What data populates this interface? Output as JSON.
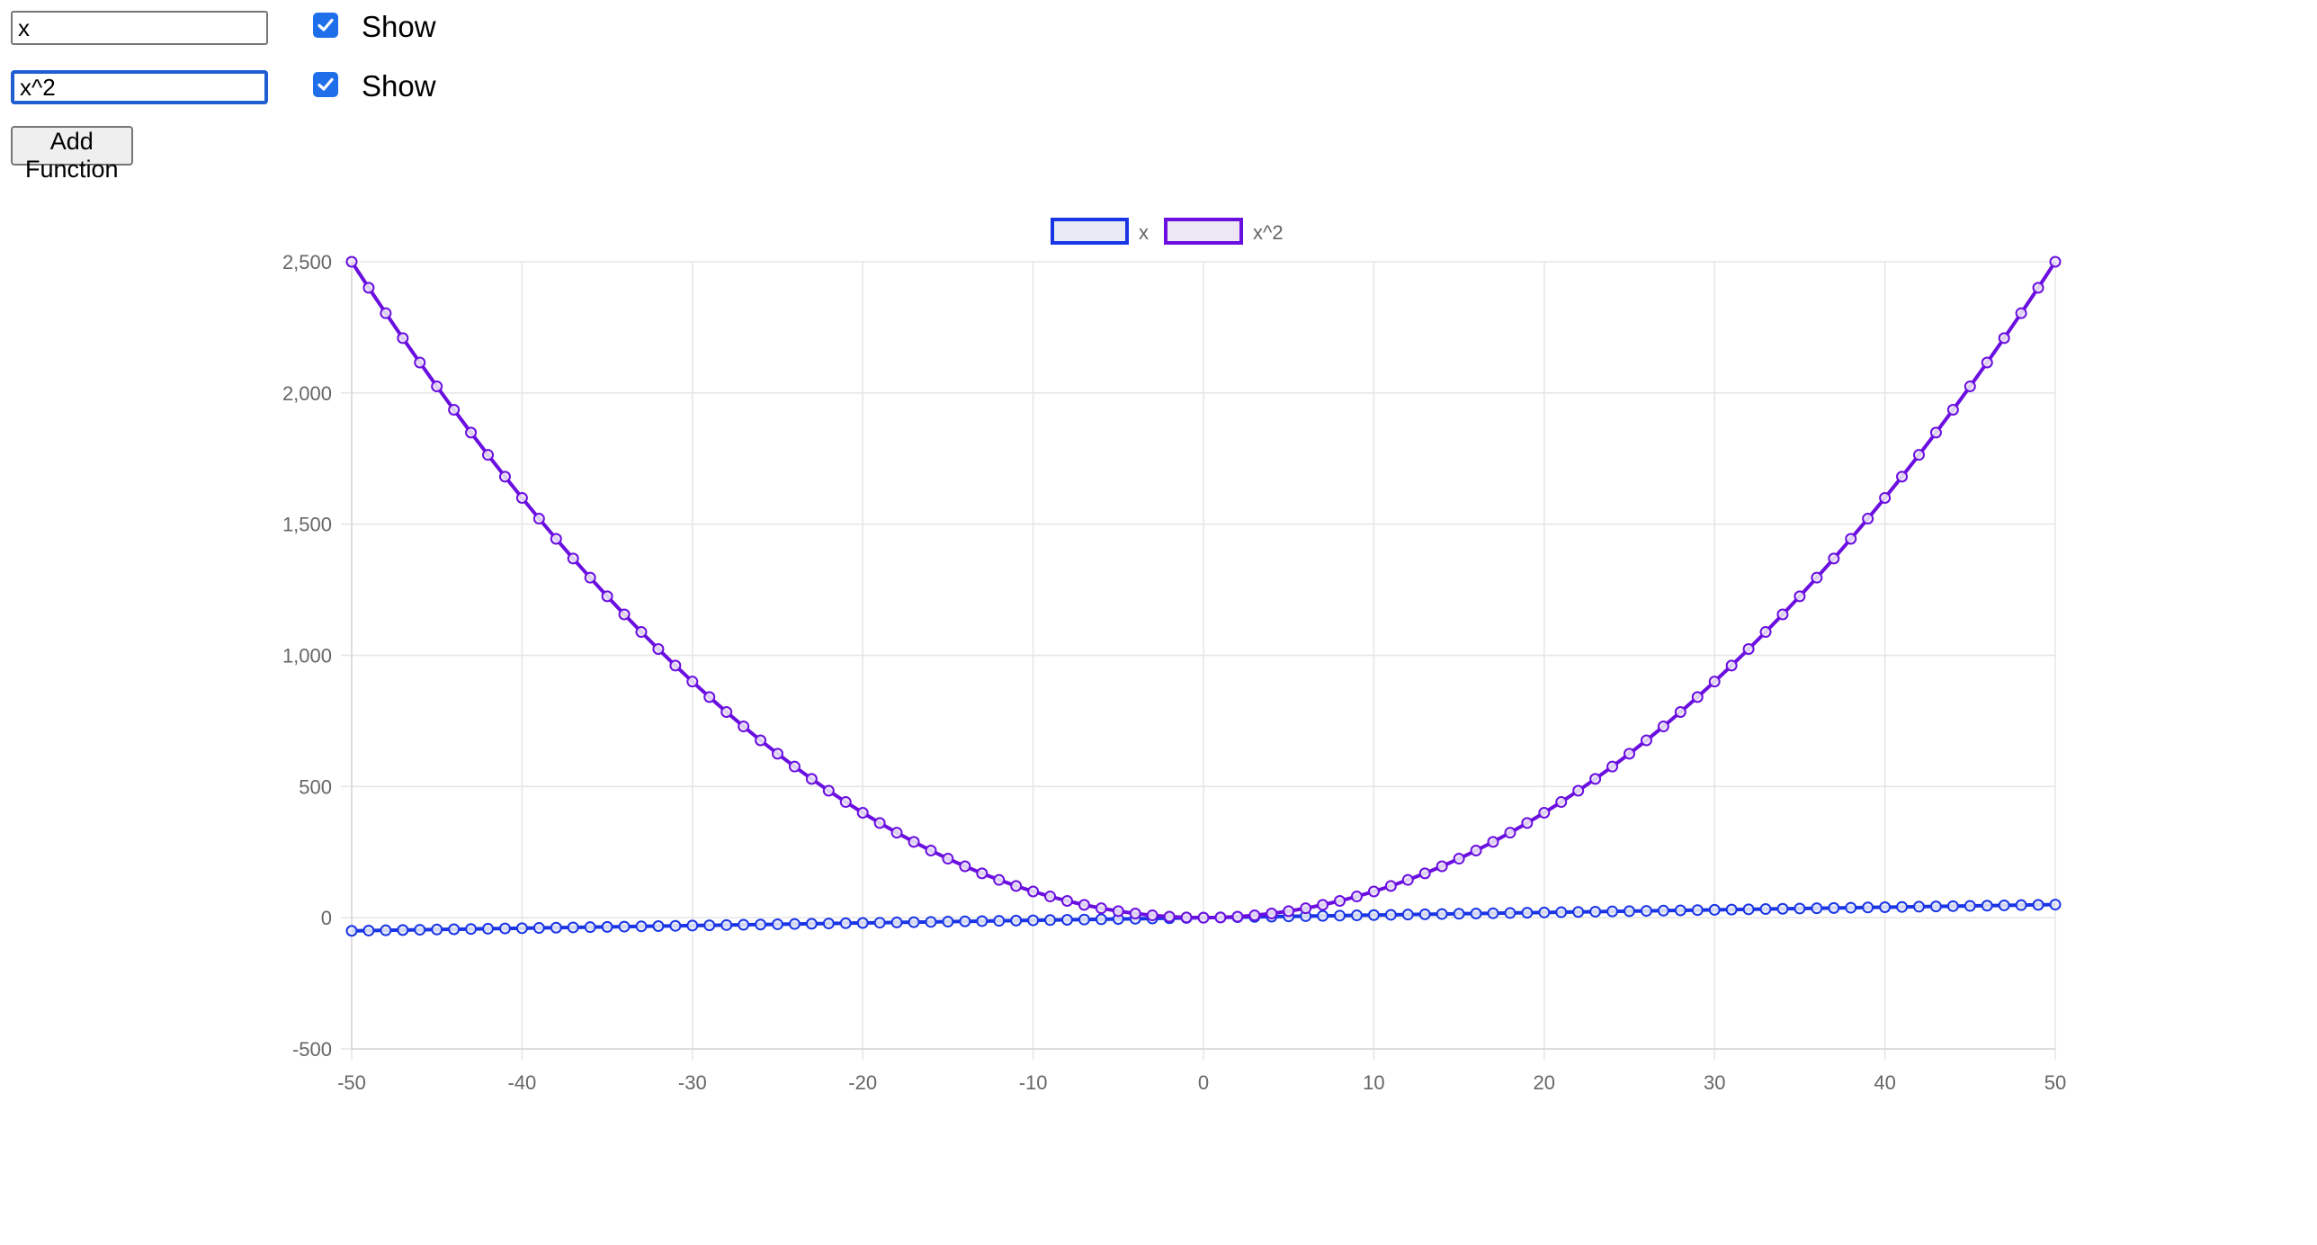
{
  "functions": [
    {
      "expression": "x",
      "show_label": "Show",
      "checked": true
    },
    {
      "expression": "x^2",
      "show_label": "Show",
      "checked": true
    }
  ],
  "add_button_label": "Add Function",
  "colors": {
    "series_x": "#1a35e6",
    "series_x2": "#6a0fe0",
    "grid": "#e5e5e5",
    "tick": "#666666",
    "checkbox": "#1f6feb",
    "focus_border": "#1f5fd1"
  },
  "chart_data": {
    "type": "line",
    "x": [
      -50,
      -49,
      -48,
      -47,
      -46,
      -45,
      -44,
      -43,
      -42,
      -41,
      -40,
      -39,
      -38,
      -37,
      -36,
      -35,
      -34,
      -33,
      -32,
      -31,
      -30,
      -29,
      -28,
      -27,
      -26,
      -25,
      -24,
      -23,
      -22,
      -21,
      -20,
      -19,
      -18,
      -17,
      -16,
      -15,
      -14,
      -13,
      -12,
      -11,
      -10,
      -9,
      -8,
      -7,
      -6,
      -5,
      -4,
      -3,
      -2,
      -1,
      0,
      1,
      2,
      3,
      4,
      5,
      6,
      7,
      8,
      9,
      10,
      11,
      12,
      13,
      14,
      15,
      16,
      17,
      18,
      19,
      20,
      21,
      22,
      23,
      24,
      25,
      26,
      27,
      28,
      29,
      30,
      31,
      32,
      33,
      34,
      35,
      36,
      37,
      38,
      39,
      40,
      41,
      42,
      43,
      44,
      45,
      46,
      47,
      48,
      49,
      50
    ],
    "series": [
      {
        "name": "x",
        "values": [
          -50,
          -49,
          -48,
          -47,
          -46,
          -45,
          -44,
          -43,
          -42,
          -41,
          -40,
          -39,
          -38,
          -37,
          -36,
          -35,
          -34,
          -33,
          -32,
          -31,
          -30,
          -29,
          -28,
          -27,
          -26,
          -25,
          -24,
          -23,
          -22,
          -21,
          -20,
          -19,
          -18,
          -17,
          -16,
          -15,
          -14,
          -13,
          -12,
          -11,
          -10,
          -9,
          -8,
          -7,
          -6,
          -5,
          -4,
          -3,
          -2,
          -1,
          0,
          1,
          2,
          3,
          4,
          5,
          6,
          7,
          8,
          9,
          10,
          11,
          12,
          13,
          14,
          15,
          16,
          17,
          18,
          19,
          20,
          21,
          22,
          23,
          24,
          25,
          26,
          27,
          28,
          29,
          30,
          31,
          32,
          33,
          34,
          35,
          36,
          37,
          38,
          39,
          40,
          41,
          42,
          43,
          44,
          45,
          46,
          47,
          48,
          49,
          50
        ]
      },
      {
        "name": "x^2",
        "values": [
          2500,
          2401,
          2304,
          2209,
          2116,
          2025,
          1936,
          1849,
          1764,
          1681,
          1600,
          1521,
          1444,
          1369,
          1296,
          1225,
          1156,
          1089,
          1024,
          961,
          900,
          841,
          784,
          729,
          676,
          625,
          576,
          529,
          484,
          441,
          400,
          361,
          324,
          289,
          256,
          225,
          196,
          169,
          144,
          121,
          100,
          81,
          64,
          49,
          36,
          25,
          16,
          9,
          4,
          1,
          0,
          1,
          4,
          9,
          16,
          25,
          36,
          49,
          64,
          81,
          100,
          121,
          144,
          169,
          196,
          225,
          256,
          289,
          324,
          361,
          400,
          441,
          484,
          529,
          576,
          625,
          676,
          729,
          784,
          841,
          900,
          961,
          1024,
          1089,
          1156,
          1225,
          1296,
          1369,
          1444,
          1521,
          1600,
          1681,
          1764,
          1849,
          1936,
          2025,
          2116,
          2209,
          2304,
          2401,
          2500
        ]
      }
    ],
    "xlim": [
      -50,
      50
    ],
    "ylim": [
      -500,
      2500
    ],
    "x_ticks": [
      "-50",
      "-40",
      "-30",
      "-20",
      "-10",
      "0",
      "10",
      "20",
      "30",
      "40",
      "50"
    ],
    "y_ticks": [
      "2,500",
      "2,000",
      "1,500",
      "1,000",
      "500",
      "0",
      "-500"
    ],
    "legend": [
      "x",
      "x^2"
    ],
    "legend_position": "top-center",
    "grid": true
  }
}
